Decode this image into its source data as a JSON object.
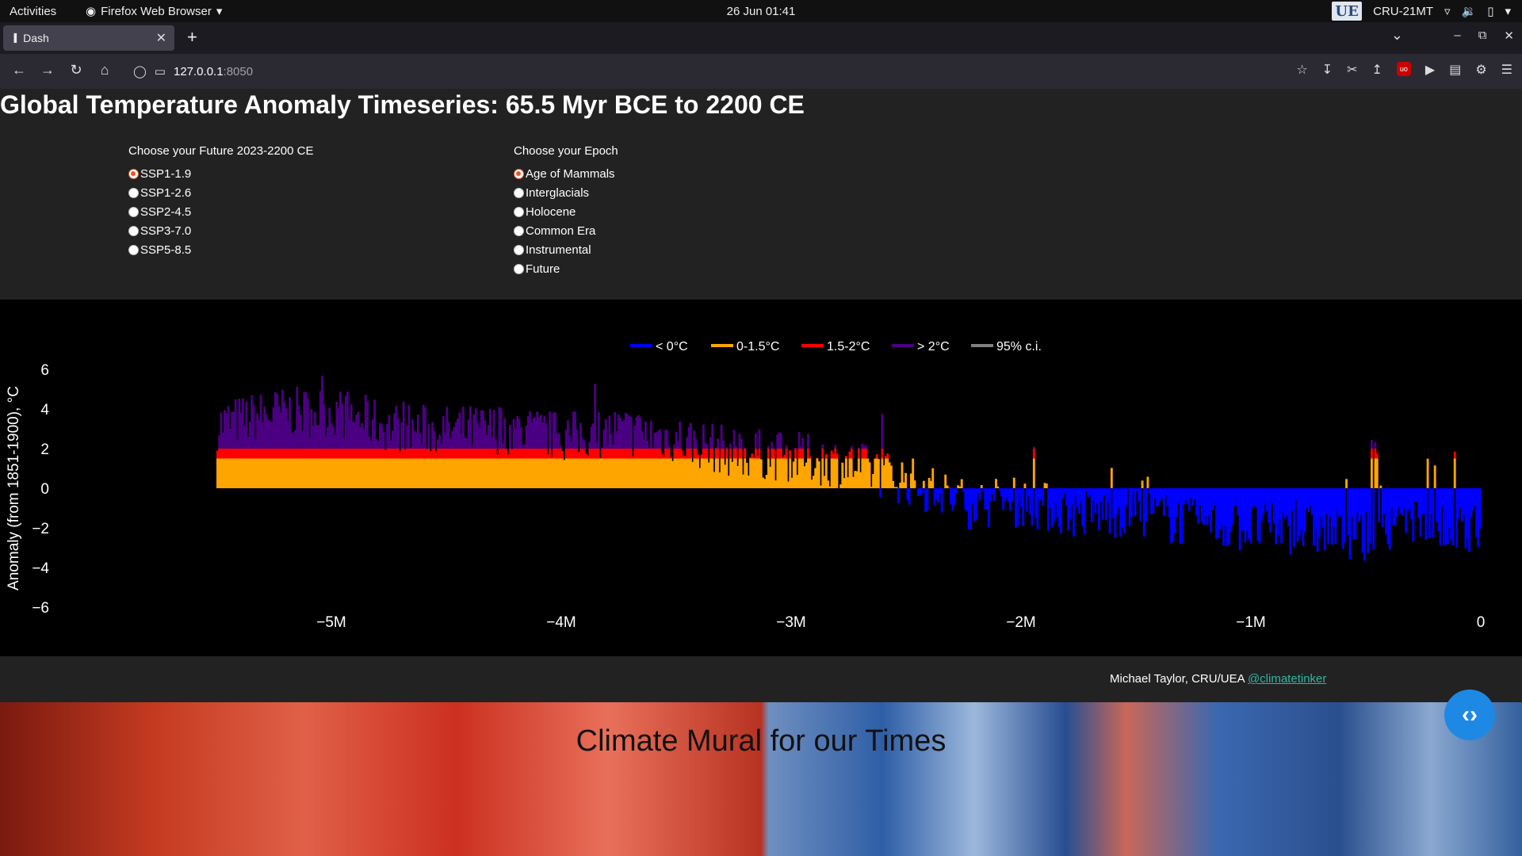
{
  "system_bar": {
    "activities": "Activities",
    "app_name": "Firefox Web Browser",
    "clock": "26 Jun  01:41",
    "user": "CRU-21MT",
    "logo_text": "UEA"
  },
  "browser": {
    "tab_title": "Dash",
    "url_host": "127.0.0.1",
    "url_port": ":8050"
  },
  "page": {
    "title": "Global Temperature Anomaly Timeseries: 65.5 Myr BCE to 2200 CE",
    "future_group": {
      "label": "Choose your Future 2023-2200 CE",
      "options": [
        "SSP1-1.9",
        "SSP1-2.6",
        "SSP2-4.5",
        "SSP3-7.0",
        "SSP5-8.5"
      ],
      "selected": 0
    },
    "epoch_group": {
      "label": "Choose your Epoch",
      "options": [
        "Age of Mammals",
        "Interglacials",
        "Holocene",
        "Common Era",
        "Instrumental",
        "Future"
      ],
      "selected": 0
    },
    "credit_name": "Michael Taylor, CRU/UEA ",
    "credit_link": "@climatetinker",
    "mural_title": "Climate Mural for our Times"
  },
  "colors": {
    "below_0": "#0000ff",
    "c0_1_5": "#ffa500",
    "c1_5_2": "#ff0000",
    "above_2": "#4b0082",
    "ci": "#808080",
    "link": "#2fb5a5"
  },
  "chart_data": {
    "type": "area",
    "title": "",
    "xlabel": "",
    "ylabel": "Anomaly (from 1851-1900), °C",
    "xlim": [
      -5500000,
      0
    ],
    "ylim": [
      -6,
      6
    ],
    "xticks": [
      -5000000,
      -4000000,
      -3000000,
      -2000000,
      -1000000,
      0
    ],
    "xtick_labels": [
      "−5M",
      "−4M",
      "−3M",
      "−2M",
      "−1M",
      "0"
    ],
    "yticks": [
      -6,
      -4,
      -2,
      0,
      2,
      4,
      6
    ],
    "ytick_labels": [
      "−6",
      "−4",
      "−2",
      "0",
      "2",
      "4",
      "6"
    ],
    "legend": [
      {
        "name": "< 0°C",
        "color": "#0000ff"
      },
      {
        "name": "0-1.5°C",
        "color": "#ffa500"
      },
      {
        "name": "1.5-2°C",
        "color": "#ff0000"
      },
      {
        "name": "> 2°C",
        "color": "#4b0082"
      },
      {
        "name": "95% c.i.",
        "color": "#808080"
      }
    ],
    "legend_position": "top-center",
    "grid": false,
    "series": [
      {
        "x": [
          -5500000,
          -5250000,
          -5000000,
          -4750000,
          -4500000,
          -4250000,
          -4000000,
          -3750000,
          -3500000,
          -3250000,
          -3000000,
          -2750000,
          -2500000,
          -2250000,
          -2000000,
          -1750000,
          -1500000,
          -1250000,
          -1000000,
          -750000,
          -500000,
          -250000,
          -100000,
          0
        ],
        "values": [
          3.2,
          3.8,
          3.9,
          3.1,
          2.9,
          3.0,
          2.6,
          2.9,
          2.5,
          1.8,
          1.6,
          1.2,
          0.4,
          -0.8,
          -0.7,
          -1.3,
          -1.2,
          -1.8,
          -2.0,
          -2.1,
          -2.5,
          -1.8,
          -2.2,
          -2.0
        ]
      }
    ]
  }
}
